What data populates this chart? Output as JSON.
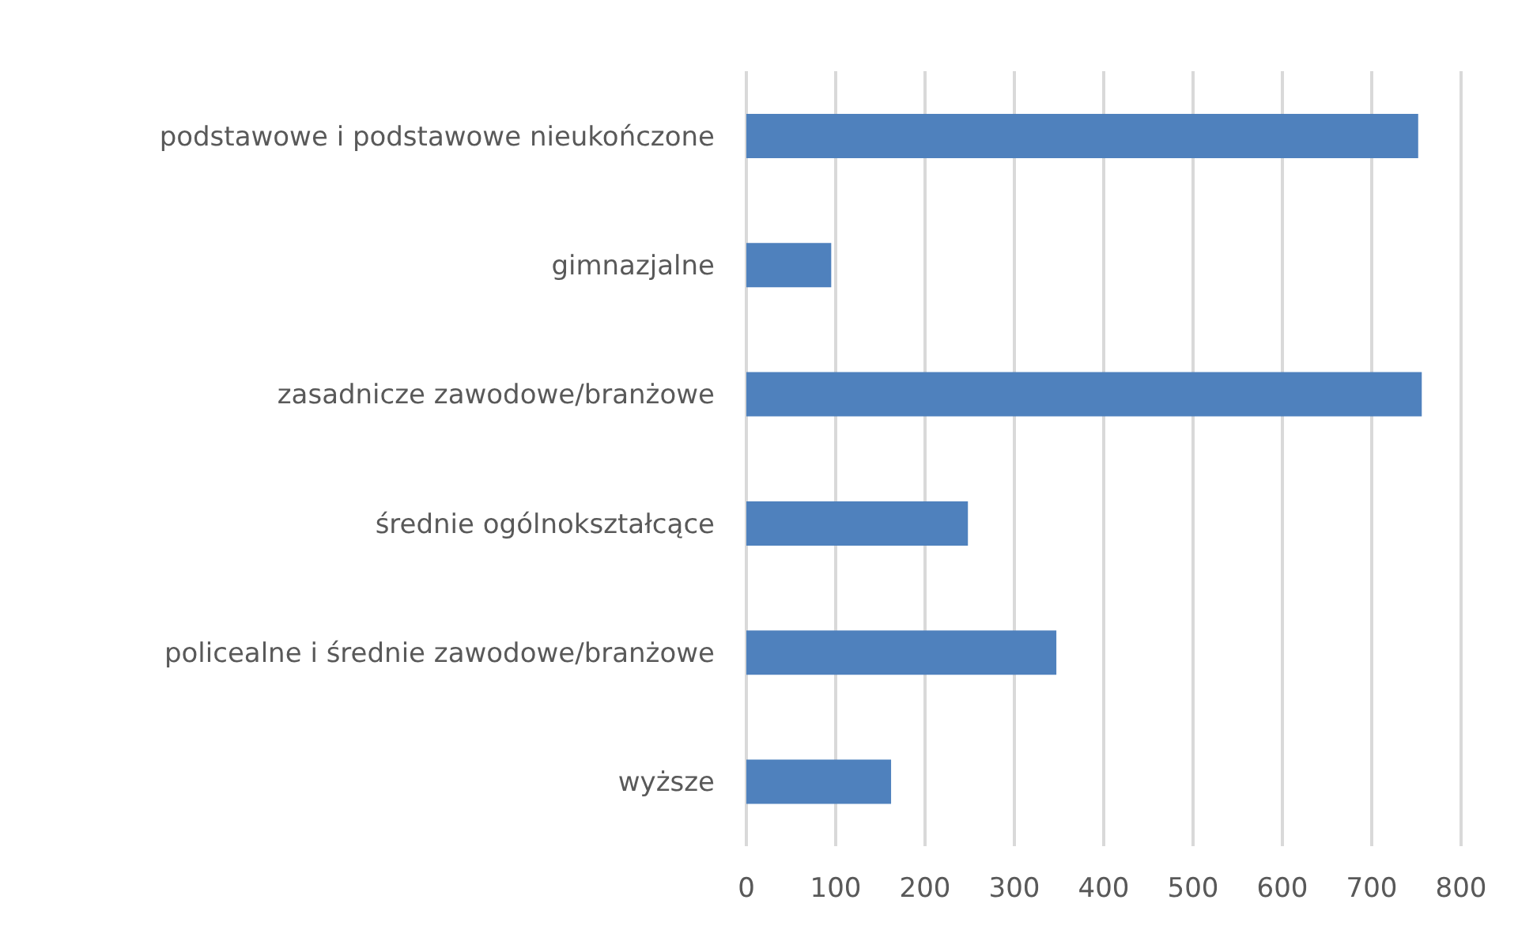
{
  "chart_data": {
    "type": "bar",
    "orientation": "horizontal",
    "categories": [
      "podstawowe i podstawowe nieukończone",
      "gimnazjalne",
      "zasadnicze zawodowe/branżowe",
      "średnie ogólnokształcące",
      "policealne i średnie zawodowe/branżowe",
      "wyższe"
    ],
    "values": [
      752,
      95,
      756,
      248,
      347,
      162
    ],
    "color": "#4f81bd",
    "xlim": [
      0,
      800
    ],
    "xticks": [
      0,
      100,
      200,
      300,
      400,
      500,
      600,
      700,
      800
    ],
    "grid": "x"
  }
}
